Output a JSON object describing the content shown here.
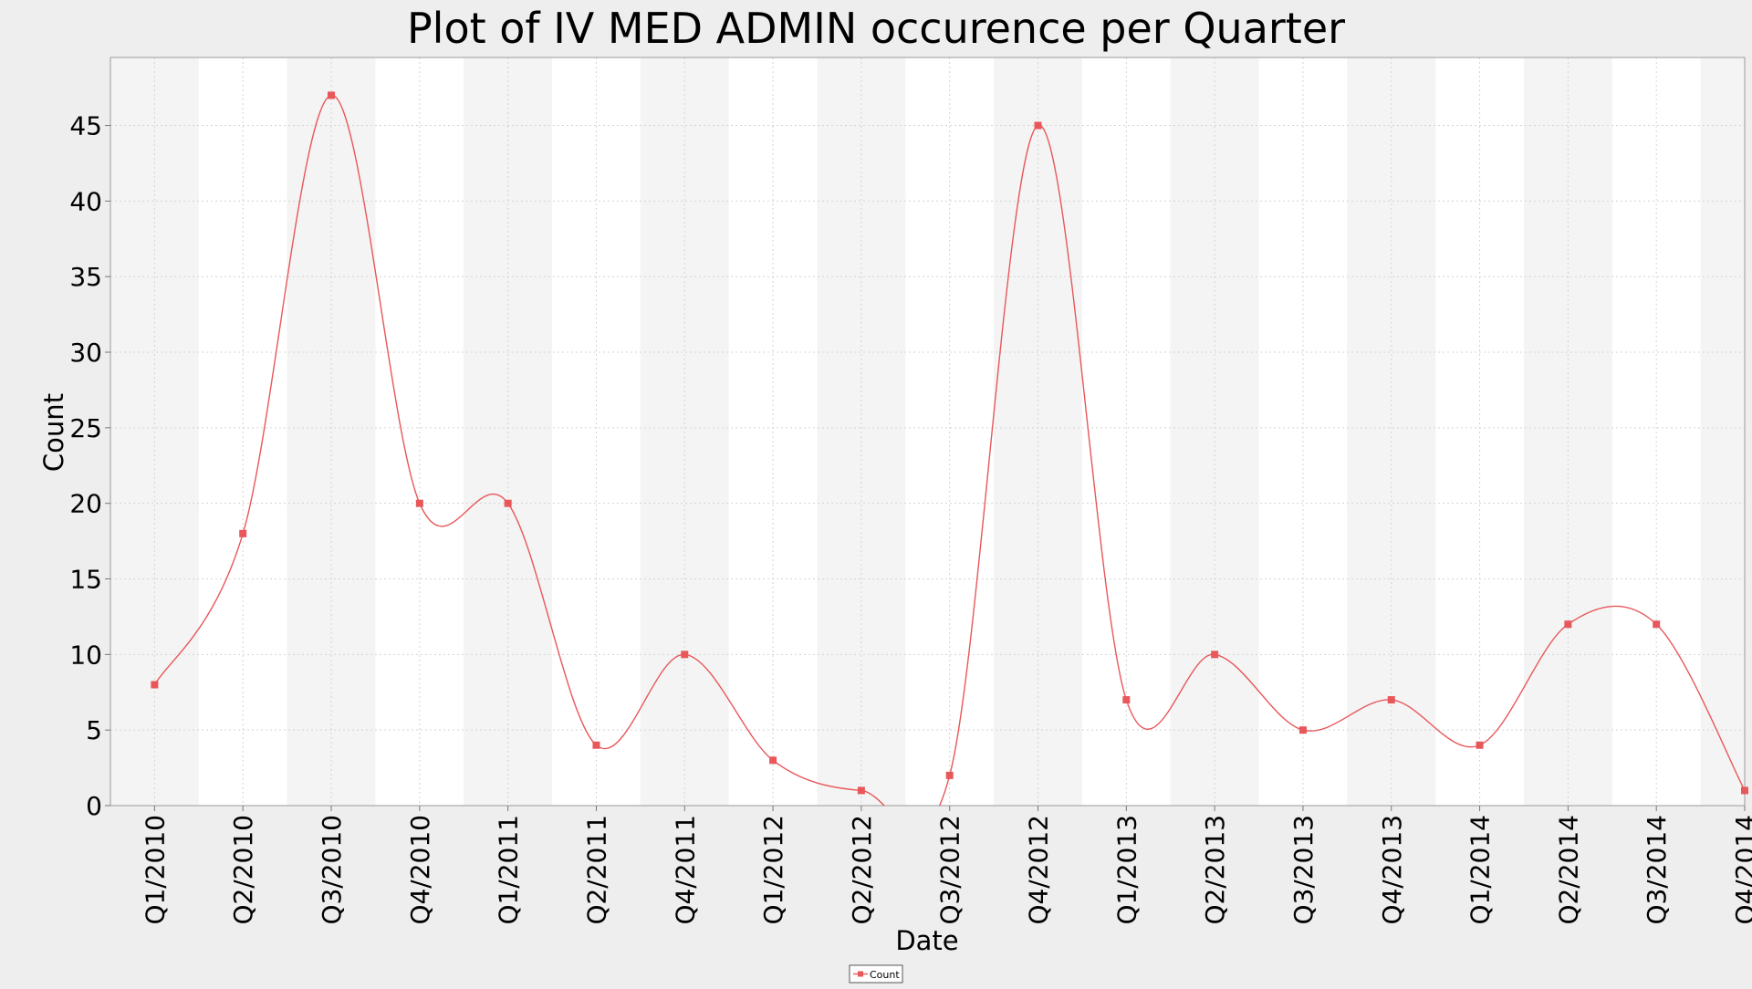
{
  "chart_data": {
    "type": "line",
    "title": "Plot of IV MED ADMIN occurence per Quarter",
    "xlabel": "Date",
    "ylabel": "Count",
    "ylim": [
      0,
      49.5
    ],
    "yticks": [
      0,
      5,
      10,
      15,
      20,
      25,
      30,
      35,
      40,
      45
    ],
    "grid": true,
    "legend_position": "bottom-center",
    "categories": [
      "Q1/2010",
      "Q2/2010",
      "Q3/2010",
      "Q4/2010",
      "Q1/2011",
      "Q2/2011",
      "Q4/2011",
      "Q1/2012",
      "Q2/2012",
      "Q3/2012",
      "Q4/2012",
      "Q1/2013",
      "Q2/2013",
      "Q3/2013",
      "Q4/2013",
      "Q1/2014",
      "Q2/2014",
      "Q3/2014",
      "Q4/2014"
    ],
    "series": [
      {
        "name": "Count",
        "color": "#e8575a",
        "values": [
          8,
          18,
          47,
          20,
          20,
          4,
          10,
          3,
          1,
          2,
          45,
          7,
          10,
          5,
          7,
          4,
          12,
          12,
          1
        ]
      }
    ]
  }
}
